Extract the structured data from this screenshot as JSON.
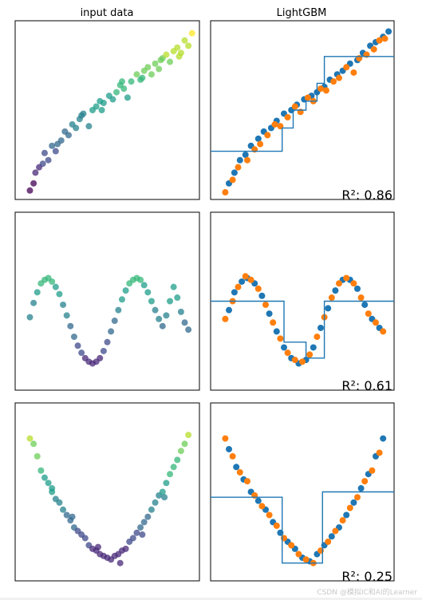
{
  "column_titles": [
    "input data",
    "LightGBM"
  ],
  "watermark": "CSDN @模拟IC和AI的Learner",
  "colors": {
    "data": "#1f77b4",
    "pred": "#ff7f0e",
    "step": "#1f77b4",
    "frame": "#000000"
  },
  "chart_data": [
    {
      "type": "scatter",
      "title": "input data",
      "colormap": "viridis",
      "xlim": [
        0,
        1
      ],
      "ylim": [
        0,
        1
      ],
      "series": [
        {
          "x": [
            0.08,
            0.1,
            0.11,
            0.13,
            0.16,
            0.18,
            0.2,
            0.22,
            0.25,
            0.27,
            0.29,
            0.31,
            0.33,
            0.35,
            0.37,
            0.4,
            0.42,
            0.44,
            0.46,
            0.48,
            0.51,
            0.53,
            0.55,
            0.57,
            0.59,
            0.61,
            0.63,
            0.66,
            0.68,
            0.7,
            0.72,
            0.74,
            0.76,
            0.78,
            0.8,
            0.82,
            0.84,
            0.86,
            0.88,
            0.9,
            0.92,
            0.94,
            0.96,
            0.15,
            0.23,
            0.36,
            0.47,
            0.58,
            0.69,
            0.79,
            0.89
          ],
          "y": [
            0.05,
            0.09,
            0.15,
            0.18,
            0.26,
            0.22,
            0.3,
            0.27,
            0.33,
            0.38,
            0.36,
            0.42,
            0.4,
            0.45,
            0.48,
            0.41,
            0.5,
            0.52,
            0.55,
            0.54,
            0.58,
            0.56,
            0.6,
            0.64,
            0.62,
            0.57,
            0.66,
            0.7,
            0.67,
            0.72,
            0.74,
            0.7,
            0.76,
            0.73,
            0.79,
            0.81,
            0.77,
            0.83,
            0.85,
            0.82,
            0.89,
            0.86,
            0.93,
            0.2,
            0.31,
            0.47,
            0.5,
            0.66,
            0.68,
            0.78,
            0.8
          ]
        }
      ]
    },
    {
      "type": "scatter",
      "title": "LightGBM",
      "r2_label": "R²: 0.86",
      "xlim": [
        0,
        1
      ],
      "ylim": [
        0,
        1
      ],
      "series": [
        {
          "name": "",
          "color": "#1f77b4",
          "x": [
            0.1,
            0.13,
            0.16,
            0.19,
            0.22,
            0.26,
            0.29,
            0.33,
            0.36,
            0.4,
            0.44,
            0.47,
            0.51,
            0.55,
            0.58,
            0.62,
            0.65,
            0.69,
            0.72,
            0.76,
            0.8,
            0.83,
            0.87,
            0.9,
            0.94,
            0.97
          ],
          "y": [
            0.09,
            0.15,
            0.22,
            0.25,
            0.3,
            0.34,
            0.38,
            0.4,
            0.44,
            0.48,
            0.5,
            0.53,
            0.56,
            0.58,
            0.6,
            0.63,
            0.67,
            0.7,
            0.72,
            0.76,
            0.78,
            0.82,
            0.86,
            0.88,
            0.91,
            0.94
          ]
        },
        {
          "name": "",
          "color": "#ff7f0e",
          "x": [
            0.08,
            0.12,
            0.15,
            0.2,
            0.24,
            0.27,
            0.31,
            0.35,
            0.38,
            0.42,
            0.46,
            0.49,
            0.53,
            0.56,
            0.6,
            0.63,
            0.67,
            0.7,
            0.74,
            0.78,
            0.81,
            0.85,
            0.89,
            0.92,
            0.95
          ],
          "y": [
            0.04,
            0.11,
            0.18,
            0.22,
            0.28,
            0.31,
            0.36,
            0.42,
            0.41,
            0.46,
            0.52,
            0.49,
            0.57,
            0.55,
            0.62,
            0.61,
            0.66,
            0.68,
            0.74,
            0.71,
            0.79,
            0.81,
            0.84,
            0.89,
            0.9
          ]
        },
        {
          "name": "",
          "type": "step",
          "x": [
            0.0,
            0.39,
            0.39,
            0.45,
            0.45,
            0.52,
            0.52,
            0.58,
            0.58,
            0.62,
            0.62,
            1.0
          ],
          "y": [
            0.27,
            0.27,
            0.4,
            0.4,
            0.5,
            0.5,
            0.55,
            0.55,
            0.65,
            0.65,
            0.8,
            0.8
          ]
        }
      ]
    },
    {
      "type": "scatter",
      "title": "input data",
      "colormap": "viridis",
      "xlim": [
        0,
        1
      ],
      "ylim": [
        0,
        1
      ],
      "series": [
        {
          "x": [
            0.08,
            0.1,
            0.12,
            0.14,
            0.16,
            0.18,
            0.2,
            0.22,
            0.24,
            0.26,
            0.28,
            0.3,
            0.32,
            0.34,
            0.36,
            0.38,
            0.4,
            0.42,
            0.44,
            0.46,
            0.48,
            0.5,
            0.52,
            0.54,
            0.56,
            0.58,
            0.6,
            0.62,
            0.64,
            0.66,
            0.68,
            0.7,
            0.72,
            0.74,
            0.76,
            0.78,
            0.8,
            0.82,
            0.84,
            0.86,
            0.88,
            0.9,
            0.92,
            0.94
          ],
          "y": [
            0.41,
            0.49,
            0.55,
            0.6,
            0.62,
            0.63,
            0.61,
            0.58,
            0.54,
            0.48,
            0.42,
            0.36,
            0.3,
            0.25,
            0.21,
            0.18,
            0.16,
            0.15,
            0.16,
            0.18,
            0.22,
            0.27,
            0.33,
            0.39,
            0.45,
            0.51,
            0.56,
            0.6,
            0.62,
            0.63,
            0.62,
            0.59,
            0.55,
            0.5,
            0.45,
            0.4,
            0.36,
            0.42,
            0.5,
            0.58,
            0.52,
            0.44,
            0.38,
            0.34
          ]
        }
      ]
    },
    {
      "type": "scatter",
      "title": "LightGBM",
      "r2_label": "R²: 0.61",
      "xlim": [
        0,
        1
      ],
      "ylim": [
        0,
        1
      ],
      "series": [
        {
          "name": "",
          "color": "#1f77b4",
          "x": [
            0.1,
            0.13,
            0.17,
            0.2,
            0.24,
            0.28,
            0.32,
            0.36,
            0.4,
            0.44,
            0.48,
            0.52,
            0.56,
            0.6,
            0.64,
            0.68,
            0.72,
            0.76,
            0.8,
            0.84,
            0.88,
            0.92
          ],
          "y": [
            0.45,
            0.55,
            0.61,
            0.63,
            0.6,
            0.53,
            0.43,
            0.33,
            0.24,
            0.18,
            0.15,
            0.17,
            0.24,
            0.35,
            0.46,
            0.56,
            0.62,
            0.62,
            0.57,
            0.48,
            0.4,
            0.35
          ]
        },
        {
          "name": "",
          "color": "#ff7f0e",
          "x": [
            0.08,
            0.12,
            0.15,
            0.19,
            0.22,
            0.26,
            0.3,
            0.34,
            0.38,
            0.42,
            0.46,
            0.5,
            0.54,
            0.58,
            0.62,
            0.66,
            0.7,
            0.74,
            0.78,
            0.82,
            0.86,
            0.9,
            0.94
          ],
          "y": [
            0.4,
            0.5,
            0.58,
            0.64,
            0.62,
            0.57,
            0.48,
            0.38,
            0.29,
            0.21,
            0.17,
            0.16,
            0.2,
            0.3,
            0.41,
            0.52,
            0.6,
            0.63,
            0.6,
            0.52,
            0.43,
            0.38,
            0.33
          ]
        },
        {
          "name": "",
          "type": "step",
          "x": [
            0.0,
            0.4,
            0.4,
            0.52,
            0.52,
            0.62,
            0.62,
            1.0
          ],
          "y": [
            0.5,
            0.5,
            0.27,
            0.27,
            0.18,
            0.18,
            0.5,
            0.5
          ]
        }
      ]
    },
    {
      "type": "scatter",
      "title": "input data",
      "colormap": "viridis",
      "xlim": [
        0,
        1
      ],
      "ylim": [
        0,
        1
      ],
      "series": [
        {
          "x": [
            0.08,
            0.1,
            0.12,
            0.14,
            0.16,
            0.18,
            0.2,
            0.22,
            0.24,
            0.26,
            0.28,
            0.3,
            0.32,
            0.34,
            0.36,
            0.38,
            0.4,
            0.42,
            0.44,
            0.46,
            0.48,
            0.5,
            0.52,
            0.54,
            0.56,
            0.58,
            0.6,
            0.62,
            0.64,
            0.66,
            0.68,
            0.7,
            0.72,
            0.74,
            0.76,
            0.78,
            0.8,
            0.82,
            0.84,
            0.86,
            0.88,
            0.9,
            0.92,
            0.94,
            0.2,
            0.31,
            0.45,
            0.57,
            0.69,
            0.81
          ],
          "y": [
            0.8,
            0.77,
            0.7,
            0.62,
            0.58,
            0.55,
            0.5,
            0.46,
            0.44,
            0.4,
            0.37,
            0.34,
            0.3,
            0.28,
            0.26,
            0.24,
            0.2,
            0.18,
            0.17,
            0.15,
            0.14,
            0.13,
            0.12,
            0.14,
            0.15,
            0.17,
            0.18,
            0.22,
            0.24,
            0.27,
            0.3,
            0.33,
            0.36,
            0.4,
            0.44,
            0.48,
            0.5,
            0.55,
            0.6,
            0.64,
            0.68,
            0.73,
            0.77,
            0.82,
            0.52,
            0.36,
            0.19,
            0.1,
            0.26,
            0.47
          ]
        }
      ]
    },
    {
      "type": "scatter",
      "title": "LightGBM",
      "r2_label": "R²: 0.25",
      "xlim": [
        0,
        1
      ],
      "ylim": [
        0,
        1
      ],
      "series": [
        {
          "name": "",
          "color": "#1f77b4",
          "x": [
            0.1,
            0.14,
            0.18,
            0.22,
            0.26,
            0.3,
            0.34,
            0.38,
            0.42,
            0.46,
            0.5,
            0.54,
            0.58,
            0.62,
            0.66,
            0.7,
            0.74,
            0.78,
            0.82,
            0.86,
            0.9,
            0.94
          ],
          "y": [
            0.74,
            0.64,
            0.57,
            0.5,
            0.45,
            0.4,
            0.33,
            0.27,
            0.22,
            0.18,
            0.13,
            0.11,
            0.15,
            0.2,
            0.25,
            0.3,
            0.37,
            0.44,
            0.52,
            0.6,
            0.7,
            0.8
          ]
        },
        {
          "name": "",
          "color": "#ff7f0e",
          "x": [
            0.08,
            0.12,
            0.16,
            0.2,
            0.24,
            0.28,
            0.32,
            0.36,
            0.4,
            0.44,
            0.48,
            0.52,
            0.56,
            0.6,
            0.64,
            0.68,
            0.72,
            0.76,
            0.8,
            0.84,
            0.88,
            0.92
          ],
          "y": [
            0.8,
            0.7,
            0.61,
            0.56,
            0.48,
            0.42,
            0.37,
            0.31,
            0.24,
            0.2,
            0.15,
            0.12,
            0.1,
            0.17,
            0.22,
            0.28,
            0.34,
            0.41,
            0.47,
            0.56,
            0.62,
            0.72
          ]
        },
        {
          "name": "",
          "type": "step",
          "x": [
            0.0,
            0.39,
            0.39,
            0.61,
            0.61,
            1.0
          ],
          "y": [
            0.47,
            0.47,
            0.1,
            0.1,
            0.5,
            0.5
          ]
        }
      ]
    }
  ]
}
